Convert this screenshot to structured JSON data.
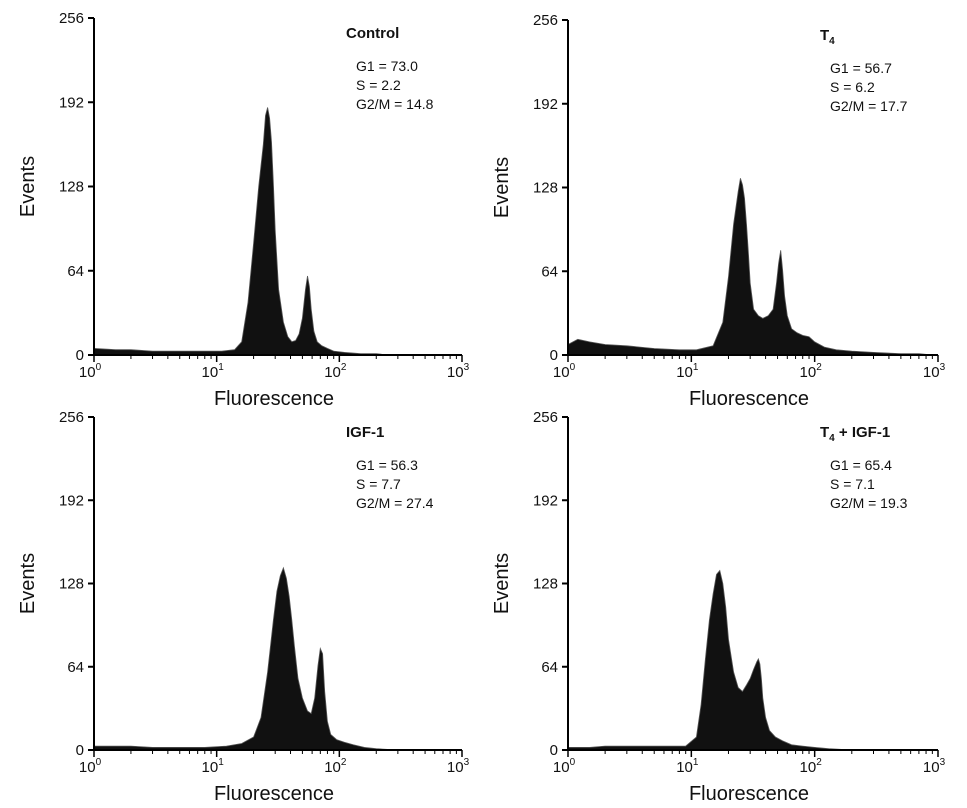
{
  "figure": {
    "accent": "#111111",
    "axis_color": "#000000"
  },
  "chart_data": [
    {
      "type": "area",
      "title": "Control",
      "title_main": "Control",
      "title_sub": "",
      "title_suffix": "",
      "xlabel": "Fluorescence",
      "ylabel": "Events",
      "xscale": "log",
      "xlim": [
        1,
        1000
      ],
      "ylim": [
        0,
        256
      ],
      "yticks": [
        "0",
        "64",
        "128",
        "192",
        "256"
      ],
      "xticks": [
        {
          "base": "10",
          "exp": "0"
        },
        {
          "base": "10",
          "exp": "1"
        },
        {
          "base": "10",
          "exp": "2"
        },
        {
          "base": "10",
          "exp": "3"
        }
      ],
      "stats": [
        "G1 = 73.0",
        "S = 2.2",
        "G2/M = 14.8"
      ],
      "x": [
        1,
        1.5,
        2,
        3,
        5,
        8,
        11,
        14,
        16,
        18,
        20,
        22,
        24,
        25,
        26,
        27,
        28,
        29,
        30,
        32,
        35,
        38,
        41,
        44,
        47,
        50,
        53,
        55,
        57,
        59,
        62,
        66,
        72,
        80,
        90,
        110,
        150,
        200,
        250
      ],
      "y": [
        5,
        4,
        4,
        3,
        3,
        3,
        3,
        4,
        10,
        40,
        85,
        128,
        160,
        182,
        188,
        180,
        162,
        130,
        95,
        50,
        25,
        14,
        10,
        11,
        16,
        28,
        50,
        60,
        52,
        35,
        18,
        10,
        7,
        5,
        3,
        2,
        1,
        1,
        0
      ]
    },
    {
      "type": "area",
      "title": "T4",
      "title_main": "T",
      "title_sub": "4",
      "title_suffix": "",
      "xlabel": "Fluorescence",
      "ylabel": "Events",
      "xscale": "log",
      "xlim": [
        1,
        1000
      ],
      "ylim": [
        0,
        256
      ],
      "yticks": [
        "0",
        "64",
        "128",
        "192",
        "256"
      ],
      "xticks": [
        {
          "base": "10",
          "exp": "0"
        },
        {
          "base": "10",
          "exp": "1"
        },
        {
          "base": "10",
          "exp": "2"
        },
        {
          "base": "10",
          "exp": "3"
        }
      ],
      "stats": [
        "G1 = 56.7",
        "S = 6.2",
        "G2/M = 17.7"
      ],
      "x": [
        1,
        1.2,
        1.5,
        2,
        3,
        5,
        8,
        11,
        15,
        18,
        20,
        22,
        24,
        25,
        26,
        27,
        28,
        29,
        30,
        32,
        35,
        38,
        42,
        46,
        49,
        51,
        53,
        55,
        57,
        60,
        65,
        72,
        80,
        90,
        100,
        120,
        150,
        200,
        300,
        500,
        700,
        900
      ],
      "y": [
        8,
        12,
        10,
        8,
        7,
        5,
        4,
        4,
        7,
        25,
        60,
        100,
        125,
        135,
        130,
        120,
        100,
        78,
        55,
        35,
        30,
        28,
        30,
        35,
        55,
        70,
        80,
        65,
        45,
        30,
        20,
        17,
        15,
        14,
        10,
        6,
        4,
        3,
        2,
        1,
        1,
        0
      ]
    },
    {
      "type": "area",
      "title": "IGF-1",
      "title_main": "IGF-1",
      "title_sub": "",
      "title_suffix": "",
      "xlabel": "Fluorescence",
      "ylabel": "Events",
      "xscale": "log",
      "xlim": [
        1,
        1000
      ],
      "ylim": [
        0,
        256
      ],
      "yticks": [
        "0",
        "64",
        "128",
        "192",
        "256"
      ],
      "xticks": [
        {
          "base": "10",
          "exp": "0"
        },
        {
          "base": "10",
          "exp": "1"
        },
        {
          "base": "10",
          "exp": "2"
        },
        {
          "base": "10",
          "exp": "3"
        }
      ],
      "stats": [
        "G1 = 56.3",
        "S = 7.7",
        "G2/M = 27.4"
      ],
      "x": [
        1,
        1.5,
        2,
        3,
        5,
        8,
        12,
        16,
        20,
        23,
        26,
        29,
        31,
        33,
        35,
        37,
        39,
        41,
        43,
        46,
        50,
        55,
        59,
        63,
        67,
        70,
        73,
        76,
        80,
        85,
        95,
        110,
        130,
        160,
        200,
        300
      ],
      "y": [
        3,
        3,
        3,
        2,
        2,
        2,
        3,
        5,
        10,
        25,
        60,
        100,
        122,
        134,
        140,
        132,
        118,
        100,
        80,
        55,
        40,
        30,
        28,
        40,
        65,
        78,
        74,
        45,
        22,
        12,
        8,
        6,
        4,
        2,
        1,
        0
      ]
    },
    {
      "type": "area",
      "title": "T4 + IGF-1",
      "title_main": "T",
      "title_sub": "4",
      "title_suffix": " + IGF-1",
      "xlabel": "Fluorescence",
      "ylabel": "Events",
      "xscale": "log",
      "xlim": [
        1,
        1000
      ],
      "ylim": [
        0,
        256
      ],
      "yticks": [
        "0",
        "64",
        "128",
        "192",
        "256"
      ],
      "xticks": [
        {
          "base": "10",
          "exp": "0"
        },
        {
          "base": "10",
          "exp": "1"
        },
        {
          "base": "10",
          "exp": "2"
        },
        {
          "base": "10",
          "exp": "3"
        }
      ],
      "stats": [
        "G1 = 65.4",
        "S = 7.1",
        "G2/M = 19.3"
      ],
      "x": [
        1,
        1.5,
        2,
        3,
        5,
        7,
        9,
        11,
        12,
        13,
        14,
        15,
        16,
        17,
        18,
        19,
        20,
        22,
        24,
        26,
        28,
        30,
        32,
        34,
        35,
        36,
        37,
        38,
        40,
        43,
        48,
        55,
        65,
        80,
        100,
        130,
        200,
        300
      ],
      "y": [
        2,
        2,
        3,
        3,
        3,
        3,
        3,
        10,
        35,
        70,
        100,
        120,
        135,
        138,
        128,
        110,
        85,
        60,
        48,
        45,
        50,
        55,
        62,
        68,
        70,
        66,
        55,
        40,
        25,
        15,
        10,
        7,
        4,
        3,
        2,
        1,
        0,
        0
      ]
    }
  ]
}
